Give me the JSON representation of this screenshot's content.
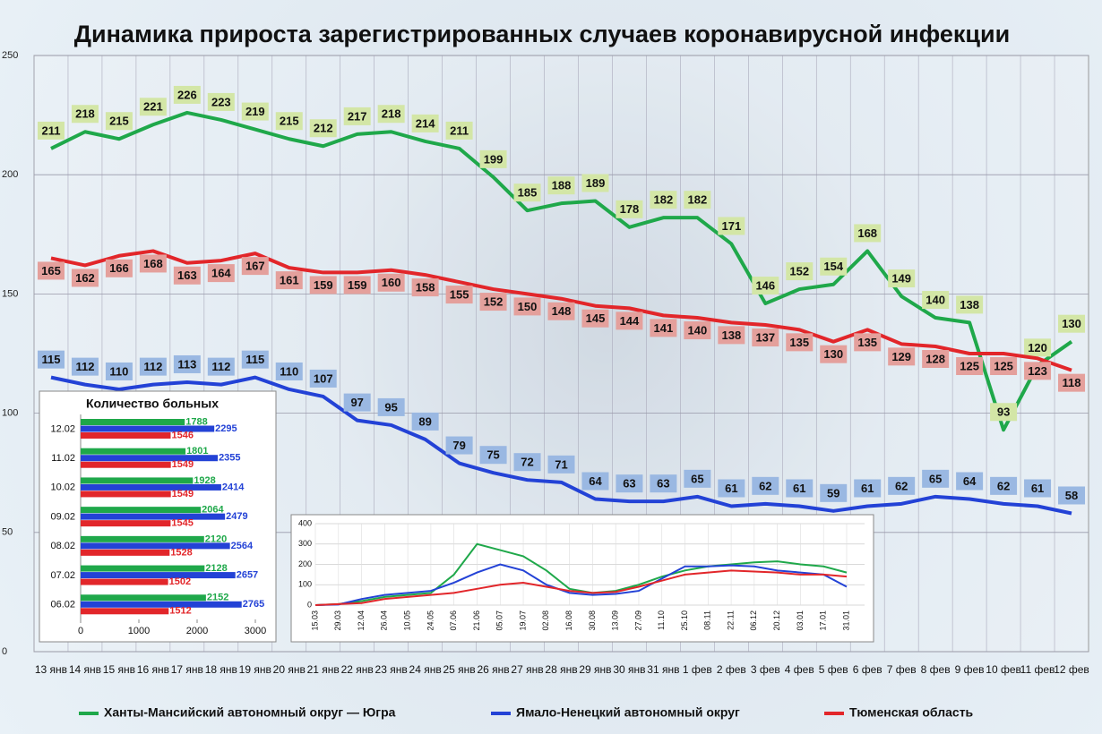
{
  "chart_data": [
    {
      "type": "line",
      "title": "Динамика прироста зарегистрированных случаев коронавирусной инфекции",
      "categories": [
        "13 янв",
        "14 янв",
        "15 янв",
        "16 янв",
        "17 янв",
        "18 янв",
        "19 янв",
        "20 янв",
        "21 янв",
        "22 янв",
        "23 янв",
        "24 янв",
        "25 янв",
        "26 янв",
        "27 янв",
        "28 янв",
        "29 янв",
        "30 янв",
        "31 янв",
        "1 фев",
        "2 фев",
        "3 фев",
        "4 фев",
        "5 фев",
        "6 фев",
        "7 фев",
        "8 фев",
        "9 фев",
        "10 фев",
        "11 фев",
        "12 фев"
      ],
      "series": [
        {
          "name": "Ханты-Мансийский автономный округ — Югра",
          "color": "#1fa84a",
          "label_color": "#d3e6a6",
          "values": [
            211,
            218,
            215,
            221,
            226,
            223,
            219,
            215,
            212,
            217,
            218,
            214,
            211,
            199,
            185,
            188,
            189,
            178,
            182,
            182,
            171,
            146,
            152,
            154,
            168,
            149,
            140,
            138,
            93,
            120,
            130
          ]
        },
        {
          "name": "Ямало-Ненецкий автономный округ",
          "color": "#2342d6",
          "label_color": "#9ab8e2",
          "values": [
            115,
            112,
            110,
            112,
            113,
            112,
            115,
            110,
            107,
            97,
            95,
            89,
            79,
            75,
            72,
            71,
            64,
            63,
            63,
            65,
            61,
            62,
            61,
            59,
            61,
            62,
            65,
            64,
            62,
            61,
            58
          ]
        },
        {
          "name": "Тюменская область",
          "color": "#e2262a",
          "label_color": "#e4a09c",
          "values": [
            165,
            162,
            166,
            168,
            163,
            164,
            167,
            161,
            159,
            159,
            160,
            158,
            155,
            152,
            150,
            148,
            145,
            144,
            141,
            140,
            138,
            137,
            135,
            130,
            135,
            129,
            128,
            125,
            125,
            123,
            118
          ]
        }
      ],
      "ylim": [
        0,
        250
      ],
      "yticks": [
        0,
        50,
        100,
        150,
        200,
        250
      ],
      "grid": true
    },
    {
      "type": "hbar",
      "title": "Количество больных",
      "categories": [
        "12.02",
        "11.02",
        "10.02",
        "09.02",
        "08.02",
        "07.02",
        "06.02"
      ],
      "series": [
        {
          "color": "#1fa84a",
          "values": [
            1788,
            1801,
            1928,
            2064,
            2120,
            2128,
            2152
          ]
        },
        {
          "color": "#2342d6",
          "values": [
            2295,
            2355,
            2414,
            2479,
            2564,
            2657,
            2765
          ]
        },
        {
          "color": "#e2262a",
          "values": [
            1546,
            1549,
            1549,
            1545,
            1528,
            1502,
            1512
          ]
        }
      ],
      "xlim": [
        0,
        3000
      ],
      "xticks": [
        0,
        1000,
        2000,
        3000
      ]
    },
    {
      "type": "line",
      "categories": [
        "15.03",
        "29.03",
        "12.04",
        "26.04",
        "10.05",
        "24.05",
        "07.06",
        "21.06",
        "05.07",
        "19.07",
        "02.08",
        "16.08",
        "30.08",
        "13.09",
        "27.09",
        "11.10",
        "25.10",
        "08.11",
        "22.11",
        "06.12",
        "20.12",
        "03.01",
        "17.01",
        "31.01"
      ],
      "series": [
        {
          "color": "#1fa84a",
          "values": [
            0,
            5,
            20,
            40,
            50,
            60,
            150,
            300,
            270,
            240,
            170,
            80,
            60,
            70,
            100,
            140,
            170,
            190,
            200,
            210,
            215,
            200,
            190,
            160
          ]
        },
        {
          "color": "#2342d6",
          "values": [
            0,
            3,
            30,
            50,
            60,
            70,
            110,
            160,
            200,
            170,
            100,
            60,
            50,
            55,
            70,
            130,
            190,
            190,
            195,
            190,
            170,
            160,
            150,
            90
          ]
        },
        {
          "color": "#e2262a",
          "values": [
            0,
            5,
            10,
            30,
            40,
            50,
            60,
            80,
            100,
            110,
            90,
            70,
            60,
            65,
            90,
            120,
            150,
            160,
            170,
            165,
            160,
            150,
            150,
            140
          ]
        }
      ],
      "ylim": [
        0,
        400
      ],
      "yticks": [
        0,
        100,
        200,
        300,
        400
      ],
      "grid": true
    }
  ]
}
